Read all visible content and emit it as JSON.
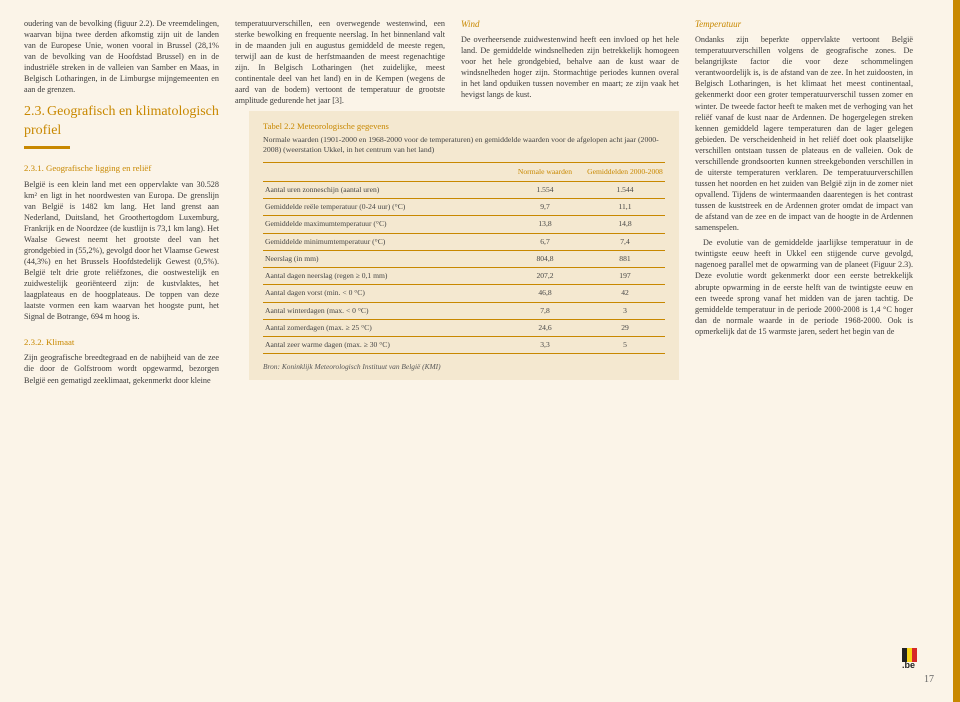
{
  "col1": {
    "intro": "oudering van de bevolking (figuur 2.2). De vreemdelingen, waarvan bijna twee derden afkomstig zijn uit de landen van de Europese Unie, wonen vooral in Brussel (28,1% van de bevolking van de Hoofdstad Brussel) en in de industriële streken in de valleien van Samber en Maas, in Belgisch Lotharingen, in de Limburgse mijngemeenten en aan de grenzen.",
    "sec_num": "2.3.",
    "sec_title": "Geografisch en klimatologisch profiel",
    "sub1_title": "2.3.1. Geografische ligging en reliëf",
    "sub1_body": "België is een klein land met een oppervlakte van 30.528 km² en ligt in het noordwesten van Europa. De grenslijn van België is 1482 km lang. Het land grenst aan Nederland, Duitsland, het Groothertogdom Luxemburg, Frankrijk en de Noordzee (de kustlijn is 73,1 km lang). Het Waalse Gewest neemt het grootste deel van het grondgebied in (55,2%), gevolgd door het Vlaamse Gewest (44,3%) en het Brussels Hoofdstedelijk Gewest (0,5%). België telt drie grote reliëfzones, die oostwestelijk en zuidwestelijk georiënteerd zijn: de kustvlaktes, het laagplateaus en de hoogplateaus. De toppen van deze laatste vormen een kam waarvan het hoogste punt, het Signal de Botrange, 694 m hoog is.",
    "sub2_title": "2.3.2. Klimaat",
    "sub2_body": "Zijn geografische breedtegraad en de nabijheid van de zee die door de Golfstroom wordt opgewarmd, bezorgen België een gematigd zeeklimaat, gekenmerkt door kleine"
  },
  "col2": {
    "p1": "temperatuurverschillen, een overwegende westenwind, een sterke bewolking en frequente neerslag. In het binnenland valt in de maanden juli en augustus gemiddeld de meeste regen, terwijl aan de kust de herfstmaanden de meest regenachtige zijn. In Belgisch Lotharingen (het zuidelijke, meest continentale deel van het land) en in de Kempen (wegens de aard van de bodem) vertoont de temperatuur de grootste amplitude gedurende het jaar [3]."
  },
  "col3": {
    "wind_h": "Wind",
    "wind_body": "De overheersende zuidwestenwind heeft een invloed op het hele land. De gemiddelde windsnelheden zijn betrekkelijk homogeen voor het hele grondgebied, behalve aan de kust waar de windsnelheden hoger zijn. Stormachtige periodes kunnen overal in het land opduiken tussen november en maart; ze zijn vaak het hevigst langs de kust."
  },
  "table": {
    "title": "Tabel 2.2 Meteorologische gegevens",
    "intro": "Normale waarden (1901-2000 en 1968-2000 voor de temperaturen) en gemiddelde waarden voor de afgelopen acht jaar (2000-2008) (weerstation Ukkel, in het centrum van het land)",
    "h1": "",
    "h2": "Normale waarden",
    "h3": "Gemiddelden 2000-2008",
    "rows": [
      [
        "Aantal uren zonneschijn (aantal uren)",
        "1.554",
        "1.544"
      ],
      [
        "Gemiddelde reële temperatuur (0-24 uur) (°C)",
        "9,7",
        "11,1"
      ],
      [
        "Gemiddelde maximumtemperatuur (°C)",
        "13,8",
        "14,8"
      ],
      [
        "Gemiddelde minimumtemperatuur (°C)",
        "6,7",
        "7,4"
      ],
      [
        "Neerslag (in mm)",
        "804,8",
        "881"
      ],
      [
        "Aantal dagen neerslag (regen ≥ 0,1 mm)",
        "207,2",
        "197"
      ],
      [
        "Aantal dagen vorst (min. < 0 °C)",
        "46,8",
        "42"
      ],
      [
        "Aantal winterdagen (max. < 0 °C)",
        "7,8",
        "3"
      ],
      [
        "Aantal zomerdagen (max. ≥ 25 °C)",
        "24,6",
        "29"
      ],
      [
        "Aantal zeer warme dagen (max. ≥ 30 °C)",
        "3,3",
        "5"
      ]
    ],
    "src": "Bron: Koninklijk Meteorologisch Instituut van België (KMI)"
  },
  "col4": {
    "temp_h": "Temperatuur",
    "temp_body": "Ondanks zijn beperkte oppervlakte vertoont België temperatuurverschillen volgens de geografische zones. De belangrijkste factor die voor deze schommelingen verantwoordelijk is, is de afstand van de zee. In het zuidoosten, in Belgisch Lotharingen, is het klimaat het meest continentaal, gekenmerkt door een groter temperatuurverschil tussen zomer en winter. De tweede factor heeft te maken met de verhoging van het reliëf vanaf de kust naar de Ardennen. De hogergelegen streken kennen gemiddeld lagere temperaturen dan de lager gelegen gebieden. De verscheidenheid in het reliëf doet ook plaatselijke verschillen ontstaan tussen de plateaus en de valleien. Ook de verschillende grondsoorten kunnen streekgebonden verschillen in de uiterste temperaturen verklaren. De temperatuurverschillen tussen het noorden en het zuiden van België zijn in de zomer niet opvallend. Tijdens de wintermaanden daarentegen is het contrast tussen de kuststreek en de Ardennen groter omdat de impact van de afstand van de zee en de impact van de hoogte in de Ardennen samenspelen.",
    "temp_body2": "De evolutie van de gemiddelde jaarlijkse temperatuur in de twintigste eeuw heeft in Ukkel een stijgende curve gevolgd, nagenoeg parallel met de opwarming van de planeet (Figuur 2.3). Deze evolutie wordt gekenmerkt door een eerste betrekkelijk abrupte opwarming in de eerste helft van de twintigste eeuw en een tweede sprong vanaf het midden van de jaren tachtig. De gemiddelde temperatuur in de periode 2000-2008 is 1,4 °C hoger dan de normale waarde in de periode 1968-2000. Ook is opmerkelijk dat de 15 warmste jaren, sedert het begin van de"
  },
  "page": "17"
}
